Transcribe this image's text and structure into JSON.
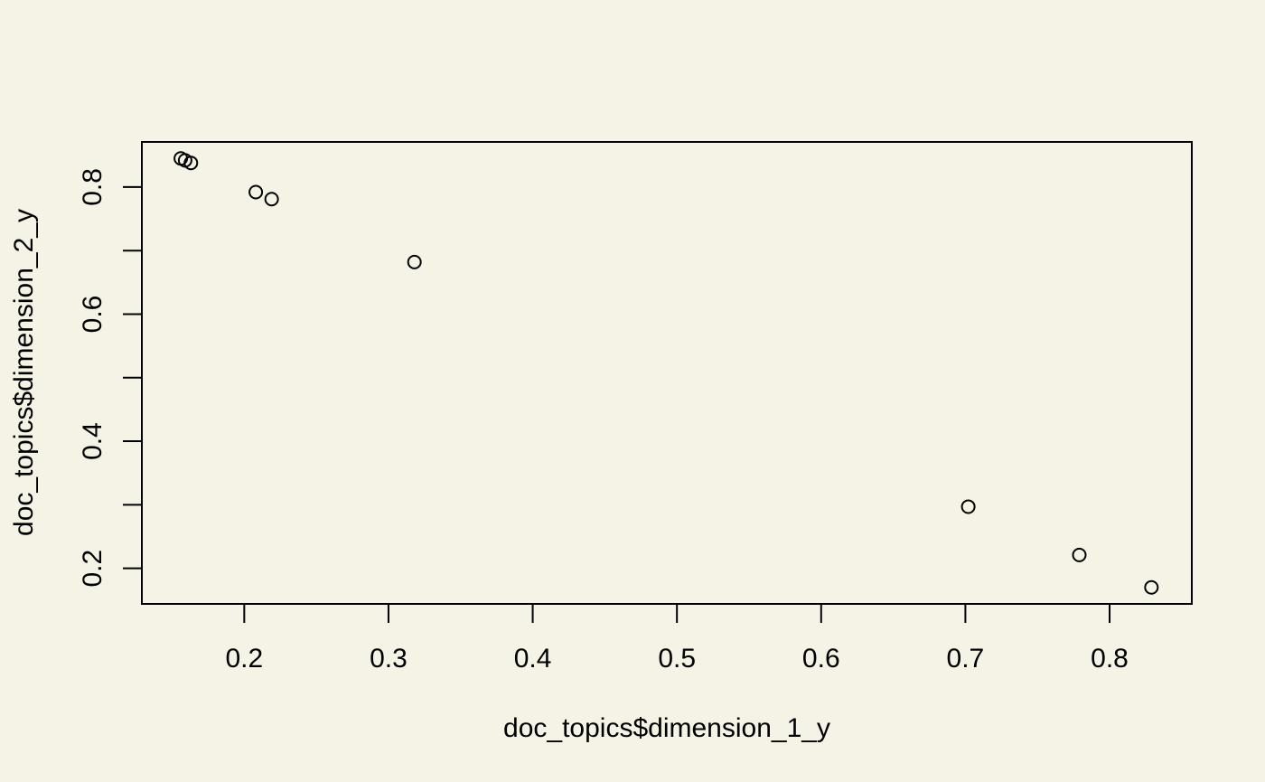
{
  "chart_data": {
    "type": "scatter",
    "title": "",
    "xlabel": "doc_topics$dimension_1_y",
    "ylabel": "doc_topics$dimension_2_y",
    "xlim": [
      0.129,
      0.857
    ],
    "ylim": [
      0.144,
      0.871
    ],
    "xticks": [
      0.2,
      0.3,
      0.4,
      0.5,
      0.6,
      0.7,
      0.8
    ],
    "xtick_labels": [
      "0.2",
      "0.3",
      "0.4",
      "0.5",
      "0.6",
      "0.7",
      "0.8"
    ],
    "yticks": [
      0.2,
      0.3,
      0.4,
      0.5,
      0.6,
      0.7,
      0.8
    ],
    "ytick_labels": [
      "0.2",
      "",
      "0.4",
      "",
      "0.6",
      "",
      "0.8"
    ],
    "grid": false,
    "marker": "open-circle",
    "colors": {
      "background": "#f5f3e6",
      "ink": "#000000"
    },
    "points": [
      {
        "x": 0.156,
        "y": 0.845
      },
      {
        "x": 0.159,
        "y": 0.842
      },
      {
        "x": 0.163,
        "y": 0.838
      },
      {
        "x": 0.208,
        "y": 0.792
      },
      {
        "x": 0.219,
        "y": 0.781
      },
      {
        "x": 0.318,
        "y": 0.682
      },
      {
        "x": 0.702,
        "y": 0.297
      },
      {
        "x": 0.779,
        "y": 0.221
      },
      {
        "x": 0.829,
        "y": 0.17
      }
    ]
  }
}
